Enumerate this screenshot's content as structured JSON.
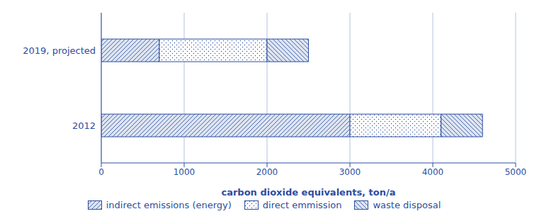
{
  "chart_data": {
    "type": "bar",
    "orientation": "horizontal",
    "stacked": true,
    "categories": [
      "2019, projected",
      "2012"
    ],
    "series": [
      {
        "name": "indirect emissions (energy)",
        "color": "#dde4f0",
        "values": [
          700,
          3000
        ]
      },
      {
        "name": "direct emmission",
        "color": "#ffffff",
        "values": [
          1300,
          1100
        ]
      },
      {
        "name": "waste disposal",
        "color": "#dde4f0",
        "values": [
          500,
          500
        ]
      }
    ],
    "color": "#2b4ea0",
    "xlabel": "carbon dioxide equivalents, ton/a",
    "xlim": [
      0,
      5000
    ],
    "xticks": [
      0,
      1000,
      2000,
      3000,
      4000,
      5000
    ],
    "grid": true,
    "legend": "bottom"
  }
}
